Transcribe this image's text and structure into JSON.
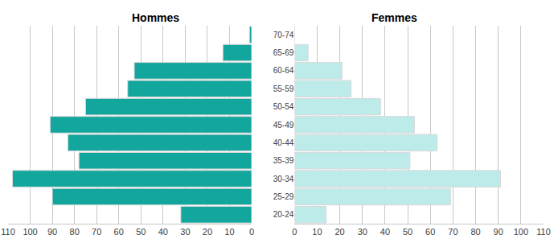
{
  "chart_data": {
    "type": "bar",
    "orientation": "horizontal",
    "grid": true,
    "categories": [
      "20-24",
      "25-29",
      "30-34",
      "35-39",
      "40-44",
      "45-49",
      "50-54",
      "55-59",
      "60-64",
      "65-69",
      "70-74"
    ],
    "series": [
      {
        "name": "Hommes",
        "color": "#12a69c",
        "values": [
          32,
          90,
          108,
          78,
          83,
          91,
          75,
          56,
          53,
          13,
          1
        ]
      },
      {
        "name": "Femmes",
        "color": "#bdebe9",
        "values": [
          14,
          69,
          91,
          51,
          63,
          53,
          38,
          25,
          21,
          6,
          0
        ]
      }
    ],
    "xlim": [
      0,
      110
    ],
    "xticks": [
      0,
      10,
      20,
      30,
      40,
      50,
      60,
      70,
      80,
      90,
      100,
      110
    ]
  }
}
